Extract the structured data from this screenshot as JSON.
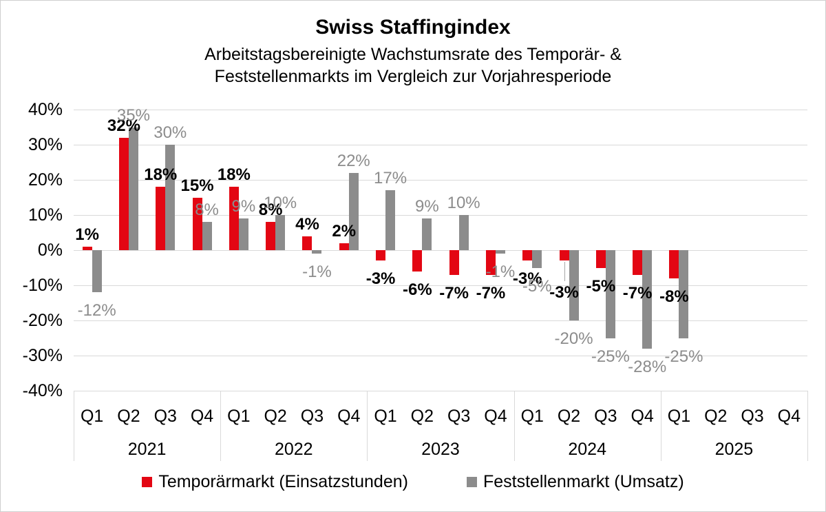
{
  "title": "Swiss Staffingindex",
  "subtitle_line1": "Arbeitstagsbereinigte Wachstumsrate des Temporär- &",
  "subtitle_line2": "Feststellenmarkts im Vergleich zur Vorjahresperiode",
  "chart_data": {
    "type": "bar",
    "x_axis": {
      "years": [
        "2021",
        "2022",
        "2023",
        "2024",
        "2025"
      ],
      "quarters_per_year": [
        "Q1",
        "Q2",
        "Q3",
        "Q4"
      ]
    },
    "y_axis": {
      "min": -40,
      "max": 40,
      "step": 10,
      "tick_labels": [
        "40%",
        "30%",
        "20%",
        "10%",
        "0%",
        "-10%",
        "-20%",
        "-30%",
        "-40%"
      ]
    },
    "value_suffix": "%",
    "grid": true,
    "legend_position": "bottom",
    "colors": {
      "temporaermarkt": "#e30613",
      "feststellenmarkt": "#8c8c8c",
      "gridline": "#d9d9d9",
      "gray_label": "#8c8c8c",
      "red_series_label": "#000000"
    },
    "series": [
      {
        "name": "Temporärmarkt (Einsatzstunden)",
        "color": "#e30613",
        "label_color": "#000000",
        "label_bold": true,
        "values": [
          1,
          32,
          18,
          15,
          18,
          8,
          4,
          2,
          -3,
          -6,
          -7,
          -7,
          -3,
          -3,
          -5,
          -7,
          -8,
          null,
          null,
          null
        ]
      },
      {
        "name": "Feststellenmarkt (Umsatz)",
        "color": "#8c8c8c",
        "label_color": "#8c8c8c",
        "label_bold": false,
        "values": [
          -12,
          35,
          30,
          8,
          9,
          10,
          -1,
          22,
          17,
          9,
          10,
          -1,
          -5,
          -20,
          -25,
          -28,
          -25,
          null,
          null,
          null
        ]
      }
    ]
  }
}
